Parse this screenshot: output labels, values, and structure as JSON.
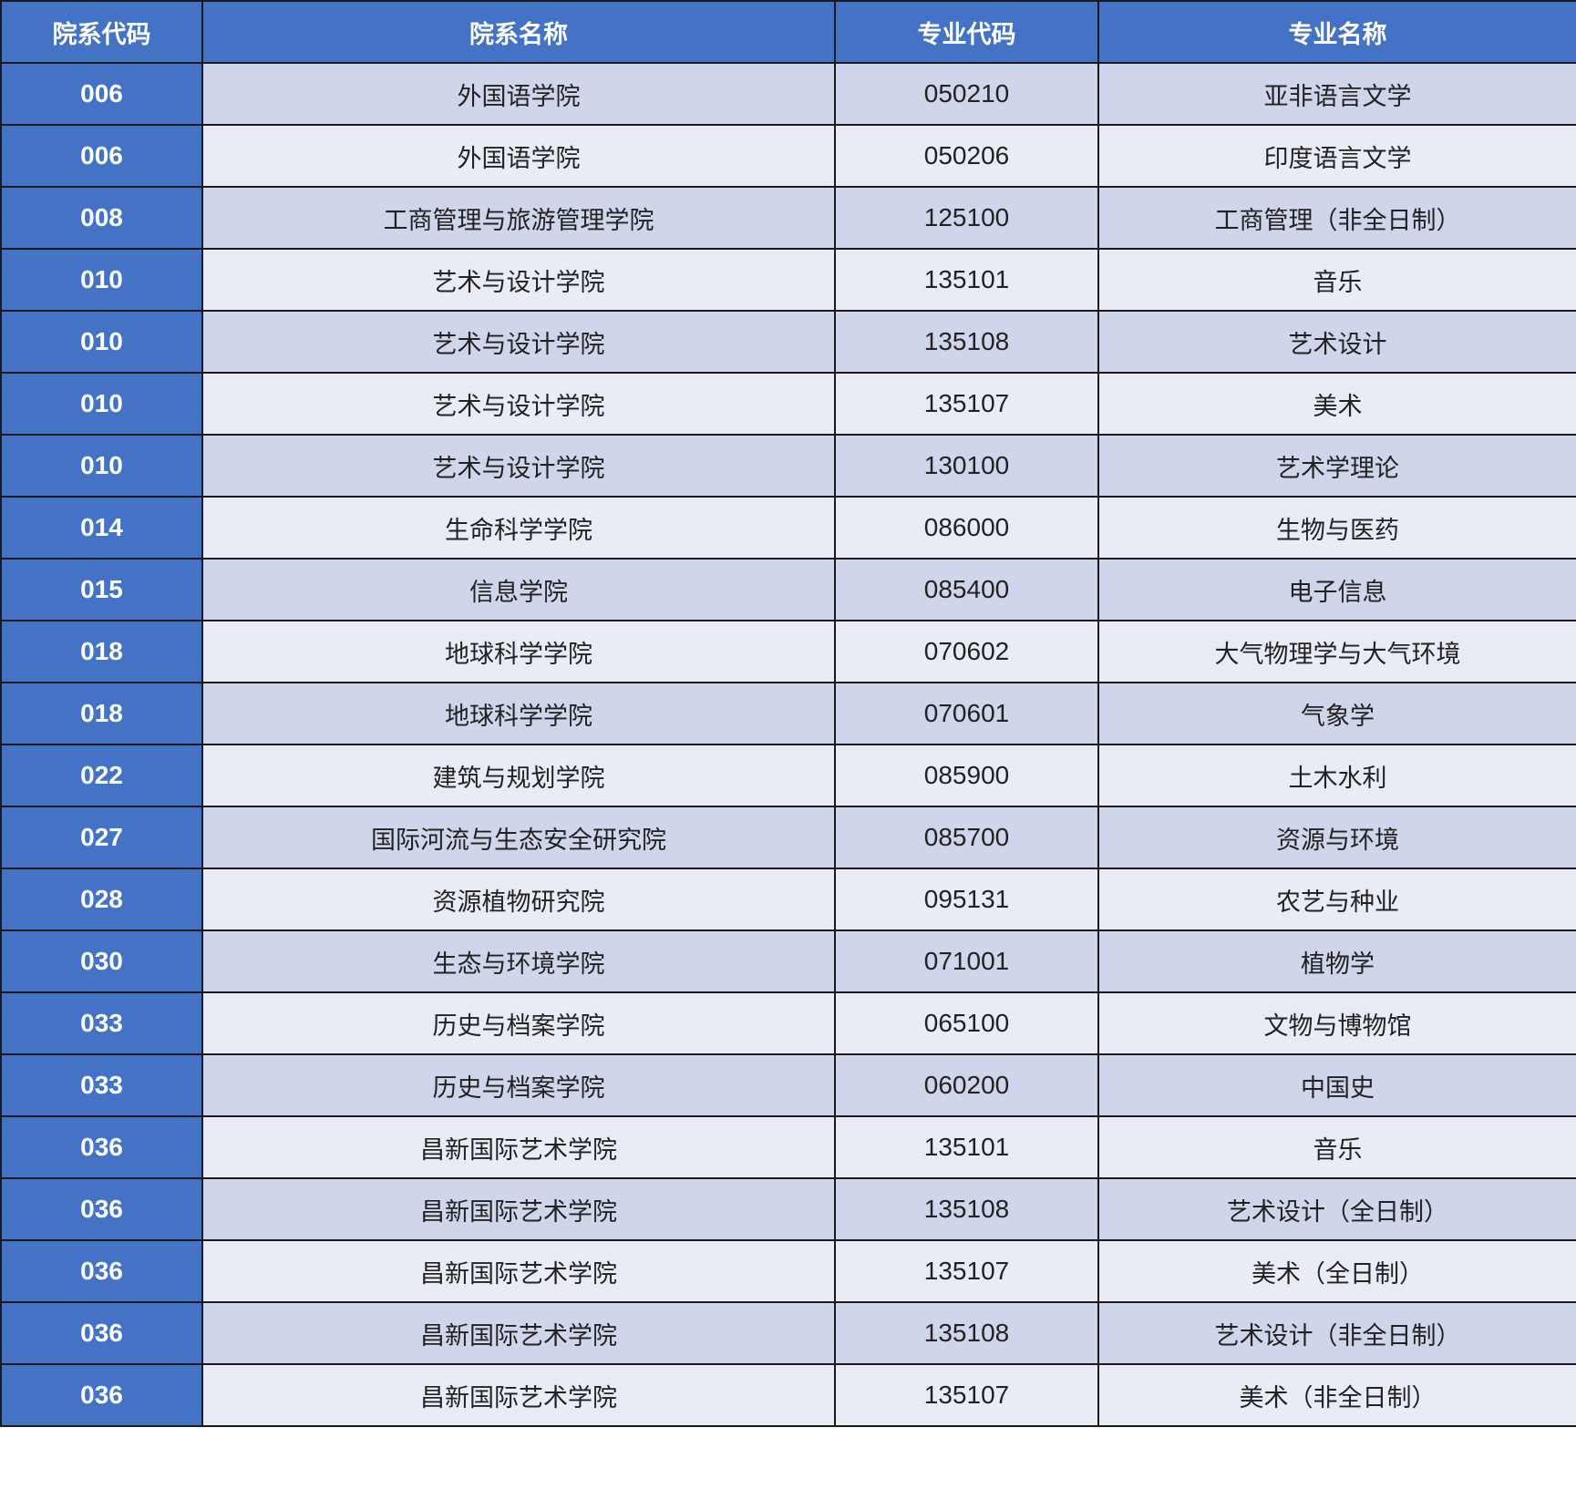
{
  "colors": {
    "header": "#4472C4",
    "row_odd": "#CFD5EA",
    "row_even": "#E9EBF5",
    "border": "#1a1a1a"
  },
  "table": {
    "headers": [
      "院系代码",
      "院系名称",
      "专业代码",
      "专业名称"
    ],
    "rows": [
      [
        "006",
        "外国语学院",
        "050210",
        "亚非语言文学"
      ],
      [
        "006",
        "外国语学院",
        "050206",
        "印度语言文学"
      ],
      [
        "008",
        "工商管理与旅游管理学院",
        "125100",
        "工商管理（非全日制）"
      ],
      [
        "010",
        "艺术与设计学院",
        "135101",
        "音乐"
      ],
      [
        "010",
        "艺术与设计学院",
        "135108",
        "艺术设计"
      ],
      [
        "010",
        "艺术与设计学院",
        "135107",
        "美术"
      ],
      [
        "010",
        "艺术与设计学院",
        "130100",
        "艺术学理论"
      ],
      [
        "014",
        "生命科学学院",
        "086000",
        "生物与医药"
      ],
      [
        "015",
        "信息学院",
        "085400",
        "电子信息"
      ],
      [
        "018",
        "地球科学学院",
        "070602",
        "大气物理学与大气环境"
      ],
      [
        "018",
        "地球科学学院",
        "070601",
        "气象学"
      ],
      [
        "022",
        "建筑与规划学院",
        "085900",
        "土木水利"
      ],
      [
        "027",
        "国际河流与生态安全研究院",
        "085700",
        "资源与环境"
      ],
      [
        "028",
        "资源植物研究院",
        "095131",
        "农艺与种业"
      ],
      [
        "030",
        "生态与环境学院",
        "071001",
        "植物学"
      ],
      [
        "033",
        "历史与档案学院",
        "065100",
        "文物与博物馆"
      ],
      [
        "033",
        "历史与档案学院",
        "060200",
        "中国史"
      ],
      [
        "036",
        "昌新国际艺术学院",
        "135101",
        "音乐"
      ],
      [
        "036",
        "昌新国际艺术学院",
        "135108",
        "艺术设计（全日制）"
      ],
      [
        "036",
        "昌新国际艺术学院",
        "135107",
        "美术（全日制）"
      ],
      [
        "036",
        "昌新国际艺术学院",
        "135108",
        "艺术设计（非全日制）"
      ],
      [
        "036",
        "昌新国际艺术学院",
        "135107",
        "美术（非全日制）"
      ]
    ]
  }
}
